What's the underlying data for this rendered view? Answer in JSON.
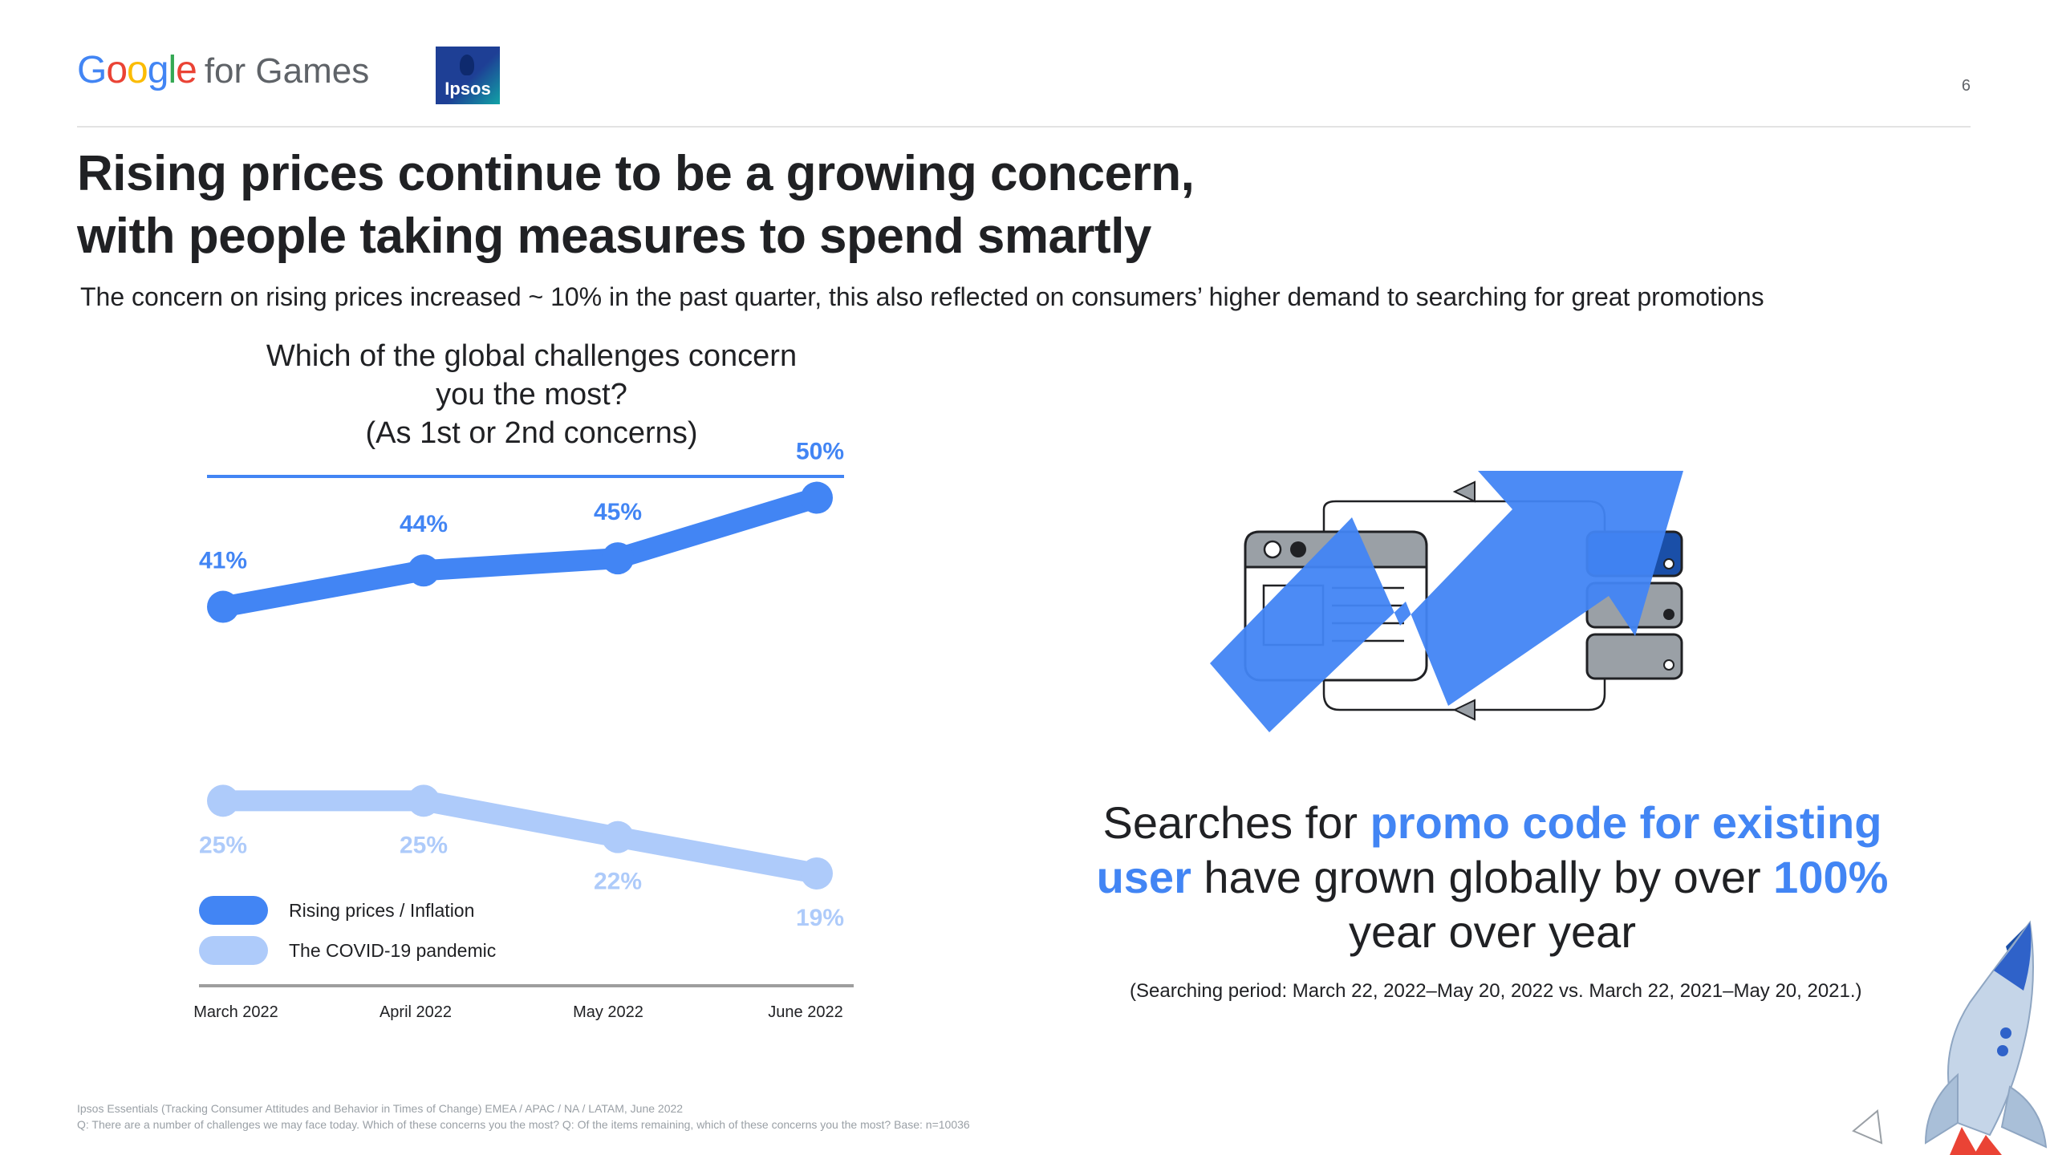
{
  "header": {
    "logo_letters": [
      {
        "char": "G",
        "color": "#4285f4"
      },
      {
        "char": "o",
        "color": "#ea4335"
      },
      {
        "char": "o",
        "color": "#fbbc05"
      },
      {
        "char": "g",
        "color": "#4285f4"
      },
      {
        "char": "l",
        "color": "#34a853"
      },
      {
        "char": "e",
        "color": "#ea4335"
      }
    ],
    "logo_suffix": "for Games",
    "partner_logo_text": "Ipsos",
    "page_number": "6"
  },
  "headline": {
    "line1": "Rising prices continue to be a growing concern,",
    "line2": "with people taking measures to spend smartly"
  },
  "subhead": "The concern on rising prices increased ~ 10% in the past quarter, this also reflected on consumers’ higher demand to searching for great promotions",
  "chart_data": {
    "type": "line",
    "title": [
      "Which of the global challenges concern",
      "you the most?",
      "(As 1st or 2nd concerns)"
    ],
    "categories": [
      "March 2022",
      "April 2022",
      "May 2022",
      "June 2022"
    ],
    "series": [
      {
        "name": "Rising prices / Inflation",
        "values": [
          41,
          44,
          45,
          50
        ],
        "labels": [
          "41%",
          "44%",
          "45%",
          "50%"
        ],
        "color": "#4285f4"
      },
      {
        "name": "The COVID-19 pandemic",
        "values": [
          25,
          25,
          22,
          19
        ],
        "labels": [
          "25%",
          "25%",
          "22%",
          "19%"
        ],
        "color": "#aecbfa"
      }
    ],
    "ylim": [
      10,
      55
    ],
    "grid": false,
    "legend_position": "bottom-left",
    "accent_rule_color": "#4285f4",
    "axis_color": "#9e9e9e"
  },
  "promo": {
    "part1": "Searches for ",
    "highlight1": "promo code for existing user",
    "part2": " have grown globally by over ",
    "highlight2": "100%",
    "part3": " year over year",
    "period_note": "(Searching period: March 22, 2022–May 20, 2022 vs. March 22, 2021–May 20, 2021.)",
    "highlight_color": "#4285f4"
  },
  "footnote": {
    "line1": "Ipsos Essentials (Tracking Consumer Attitudes and Behavior in Times of Change) EMEA / APAC / NA / LATAM, June 2022",
    "line2": "Q: There are a number of challenges we may face today. Which of these concerns you the most? Q: Of the items remaining, which of these concerns you the most? Base: n=10036"
  },
  "icons": [
    "growth-arrow-icon",
    "browser-window-icon",
    "server-stack-icon",
    "rocket-icon"
  ]
}
